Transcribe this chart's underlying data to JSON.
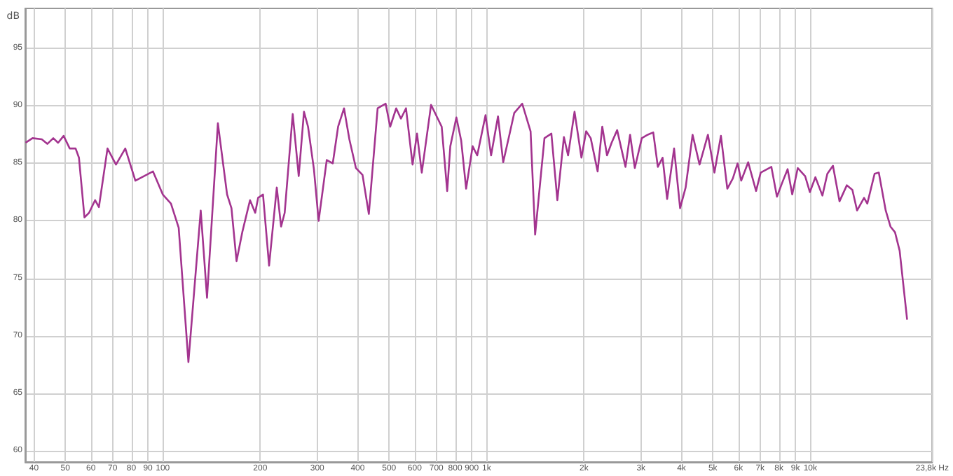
{
  "chart_data": {
    "type": "line",
    "ylabel": "dB",
    "log": "x",
    "grid": true,
    "marker": "none",
    "line_style": "solid",
    "xlim": [
      37.6,
      23800
    ],
    "ylim": [
      59,
      98.5
    ],
    "xticks": [
      40,
      50,
      60,
      70,
      80,
      90,
      100,
      200,
      300,
      400,
      500,
      600,
      700,
      800,
      900,
      {
        "value": 1000,
        "label": "1k"
      },
      {
        "value": 2000,
        "label": "2k"
      },
      {
        "value": 3000,
        "label": "3k"
      },
      {
        "value": 4000,
        "label": "4k"
      },
      {
        "value": 5000,
        "label": "5k"
      },
      {
        "value": 6000,
        "label": "6k"
      },
      {
        "value": 7000,
        "label": "7k"
      },
      {
        "value": 8000,
        "label": "8k"
      },
      {
        "value": 9000,
        "label": "9k"
      },
      {
        "value": 10000,
        "label": "10k"
      },
      {
        "value": 23800,
        "label": "23,8k Hz"
      }
    ],
    "yticks": [
      60,
      65,
      70,
      75,
      80,
      85,
      90,
      95
    ],
    "x": [
      37.7,
      39.6,
      42.3,
      44.0,
      45.9,
      47.5,
      49.4,
      51.6,
      53.8,
      55.1,
      57.3,
      59.2,
      61.8,
      63.5,
      67.5,
      71.7,
      76.6,
      82.3,
      93.3,
      100,
      106,
      112,
      120,
      131,
      137,
      148,
      158,
      163,
      169,
      176,
      186,
      193,
      197,
      204,
      213,
      225,
      232,
      238,
      252,
      263,
      273,
      281,
      293,
      303,
      321,
      335,
      348,
      363,
      377,
      395,
      414,
      433,
      461,
      488,
      504,
      526,
      544,
      564,
      591,
      610,
      631,
      674,
      727,
      756,
      773,
      807,
      835,
      865,
      906,
      936,
      993,
      1033,
      1085,
      1126,
      1179,
      1218,
      1289,
      1368,
      1413,
      1510,
      1586,
      1655,
      1734,
      1786,
      1870,
      1964,
      2031,
      2098,
      2204,
      2278,
      2356,
      2434,
      2532,
      2687,
      2776,
      2871,
      3017,
      3147,
      3273,
      3382,
      3498,
      3613,
      3796,
      3962,
      4121,
      4330,
      4550,
      4829,
      5058,
      5297,
      5543,
      5766,
      5963,
      6119,
      6430,
      6801,
      7027,
      7583,
      7889,
      8184,
      8511,
      8795,
      9149,
      9640,
      9970,
      10370,
      10900,
      11290,
      11750,
      12310,
      12970,
      13490,
      13950,
      14660,
      15000,
      15800,
      16280,
      17100,
      17690,
      18270,
      18880,
      19910
    ],
    "series": [
      {
        "color": "#a3348f",
        "values": [
          86.8,
          87.2,
          87.1,
          86.7,
          87.2,
          86.8,
          87.4,
          86.3,
          86.3,
          85.5,
          80.3,
          80.7,
          81.8,
          81.2,
          86.3,
          84.9,
          86.3,
          83.5,
          84.3,
          82.3,
          81.5,
          79.4,
          67.7,
          80.9,
          73.3,
          88.5,
          82.3,
          81.1,
          76.5,
          79.0,
          81.8,
          80.7,
          82.0,
          82.3,
          76.1,
          82.9,
          79.5,
          80.7,
          89.3,
          83.9,
          89.5,
          88.2,
          84.5,
          80.0,
          85.3,
          85.0,
          88.2,
          89.8,
          87.1,
          84.6,
          84.0,
          80.6,
          89.8,
          90.2,
          88.2,
          89.8,
          88.9,
          89.8,
          84.9,
          87.6,
          84.2,
          90.1,
          88.2,
          82.6,
          86.5,
          89.0,
          87.0,
          82.8,
          86.5,
          85.7,
          89.2,
          85.7,
          89.1,
          85.1,
          87.6,
          89.4,
          90.2,
          87.8,
          78.8,
          87.2,
          87.6,
          81.8,
          87.3,
          85.7,
          89.5,
          85.5,
          87.8,
          87.2,
          84.3,
          88.2,
          85.7,
          86.8,
          87.9,
          84.7,
          87.5,
          84.6,
          87.2,
          87.5,
          87.7,
          84.7,
          85.5,
          81.9,
          86.3,
          81.1,
          82.9,
          87.5,
          84.9,
          87.5,
          84.2,
          87.4,
          82.8,
          83.7,
          85.0,
          83.5,
          85.1,
          82.6,
          84.2,
          84.7,
          82.1,
          83.3,
          84.5,
          82.3,
          84.6,
          83.9,
          82.5,
          83.8,
          82.2,
          84.1,
          84.8,
          81.7,
          83.1,
          82.7,
          80.9,
          82.0,
          81.5,
          84.1,
          84.2,
          80.9,
          79.5,
          79.0,
          77.4,
          71.4
        ]
      }
    ]
  }
}
